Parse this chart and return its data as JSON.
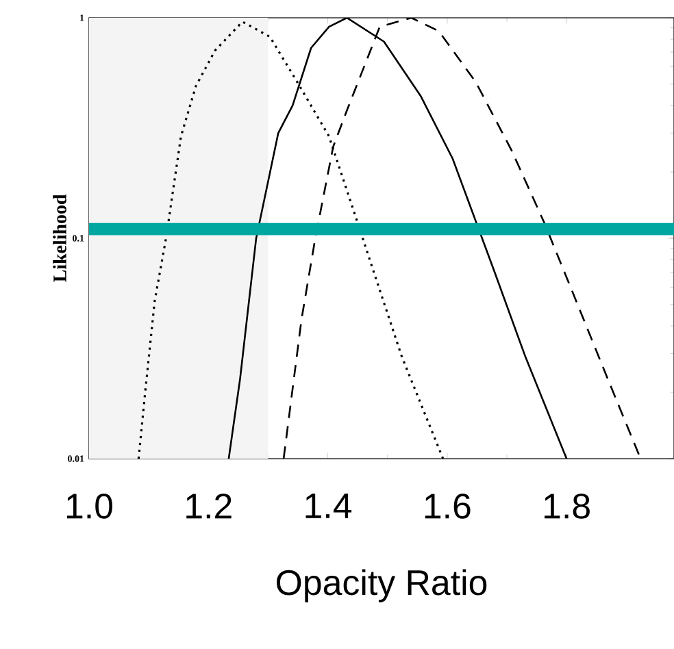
{
  "chart_data": {
    "type": "line",
    "xlabel": "Opacity Ratio",
    "ylabel": "Likelihood",
    "log": "y",
    "xlim": [
      1.0,
      1.98
    ],
    "xticks": [
      {
        "value": 1.0,
        "label": "1.0"
      },
      {
        "value": 1.2,
        "label": "1.2"
      },
      {
        "value": 1.4,
        "label": "1.4"
      },
      {
        "value": 1.6,
        "label": "1.6"
      },
      {
        "value": 1.8,
        "label": "1.8"
      }
    ],
    "ylim": [
      0.01,
      1
    ],
    "yticks": [
      0.01,
      0.1,
      1
    ],
    "series": [
      {
        "color": "#000000",
        "line_style": "dotted",
        "x": [
          1.083,
          1.094,
          1.11,
          1.129,
          1.154,
          1.179,
          1.211,
          1.257,
          1.303,
          1.349,
          1.402,
          1.448,
          1.478,
          1.524,
          1.593
        ],
        "values": [
          0.01,
          0.02,
          0.052,
          0.1,
          0.29,
          0.49,
          0.71,
          0.96,
          0.82,
          0.51,
          0.29,
          0.122,
          0.069,
          0.029,
          0.01
        ]
      },
      {
        "color": "#000000",
        "line_style": "solid",
        "x": [
          1.234,
          1.253,
          1.28,
          1.317,
          1.341,
          1.372,
          1.402,
          1.432,
          1.494,
          1.556,
          1.609,
          1.678,
          1.731,
          1.8
        ],
        "values": [
          0.01,
          0.023,
          0.1,
          0.3,
          0.4,
          0.73,
          0.91,
          1.0,
          0.78,
          0.44,
          0.23,
          0.072,
          0.029,
          0.01
        ]
      },
      {
        "color": "#000000",
        "line_style": "dashed",
        "x": [
          1.326,
          1.356,
          1.379,
          1.409,
          1.432,
          1.487,
          1.54,
          1.586,
          1.648,
          1.708,
          1.763,
          1.816,
          1.869,
          1.924
        ],
        "values": [
          0.01,
          0.043,
          0.1,
          0.26,
          0.38,
          0.91,
          1.0,
          0.87,
          0.51,
          0.25,
          0.117,
          0.052,
          0.023,
          0.01
        ]
      }
    ],
    "ref_lines": [
      {
        "axis": "y",
        "value": 0.11,
        "color": "#00a6a0"
      }
    ],
    "bands": [
      {
        "axis": "x",
        "from": 1.0,
        "to": 1.3,
        "color": "#f4f4f4"
      }
    ]
  }
}
